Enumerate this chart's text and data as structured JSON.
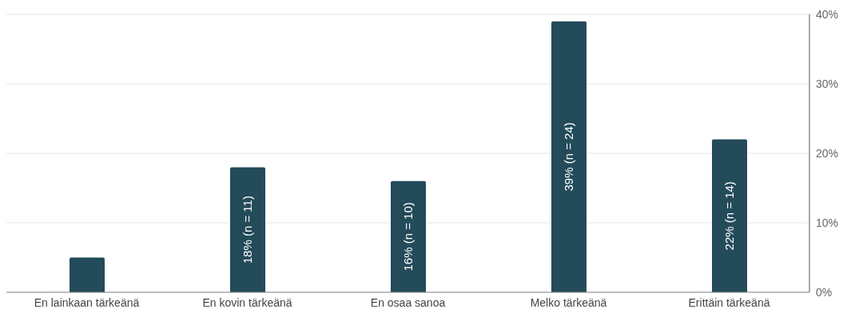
{
  "chart_data": {
    "type": "bar",
    "categories": [
      "En lainkaan tärkeänä",
      "En kovin tärkeänä",
      "En osaa sanoa",
      "Melko tärkeänä",
      "Erittäin tärkeänä"
    ],
    "values": [
      5,
      18,
      16,
      39,
      22
    ],
    "value_labels": [
      null,
      "18% (n = 11)",
      "16% (n = 10)",
      "39% (n = 24)",
      "22% (n = 14)"
    ],
    "color": "#234b5a",
    "ylim": [
      0,
      40
    ],
    "yticks": [
      {
        "value": 0,
        "label": "0%"
      },
      {
        "value": 10,
        "label": "10%"
      },
      {
        "value": 20,
        "label": "20%"
      },
      {
        "value": 30,
        "label": "30%"
      },
      {
        "value": 40,
        "label": "40%"
      }
    ],
    "grid": "y"
  }
}
